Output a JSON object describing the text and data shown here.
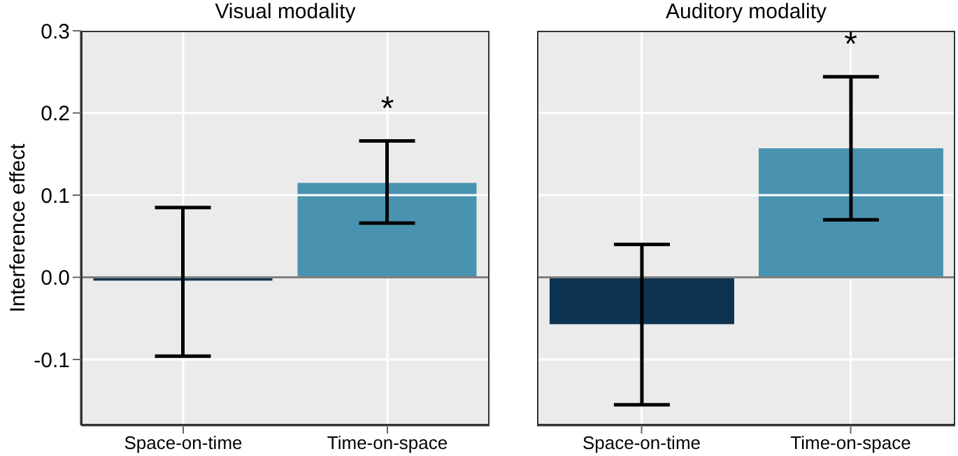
{
  "chart_data": [
    {
      "type": "bar",
      "title": "Visual modality",
      "ylabel": "Interference effect",
      "categories": [
        "Space-on-time",
        "Time-on-space"
      ],
      "values": [
        -0.004,
        0.115
      ],
      "colors": [
        "#0e3350",
        "#4a93b0"
      ],
      "errors": [
        [
          -0.096,
          0.085
        ],
        [
          0.066,
          0.166
        ]
      ],
      "ylim": [
        -0.18,
        0.3
      ],
      "yticks": [
        {
          "value": -0.1,
          "label": "-0.1"
        },
        {
          "value": 0,
          "label": "0.0"
        },
        0.1,
        0.2,
        0.3
      ],
      "grid": true,
      "ref_lines": [
        {
          "axis": "y",
          "value": 0,
          "color": "#808080"
        }
      ],
      "annotations": [
        "*"
      ]
    },
    {
      "type": "bar",
      "title": "Auditory modality",
      "categories": [
        "Space-on-time",
        "Time-on-space"
      ],
      "values": [
        -0.057,
        0.157
      ],
      "colors": [
        "#0e3350",
        "#4a93b0"
      ],
      "errors": [
        [
          -0.155,
          0.04
        ],
        [
          0.07,
          0.244
        ]
      ],
      "ylim": [
        -0.18,
        0.3
      ],
      "yticks": [
        -0.1,
        0,
        0.1,
        0.2,
        0.3
      ],
      "grid": true,
      "tick_labels": "x",
      "ref_lines": [
        {
          "axis": "y",
          "value": 0,
          "color": "#808080"
        }
      ],
      "annotations": [
        "*"
      ]
    }
  ]
}
